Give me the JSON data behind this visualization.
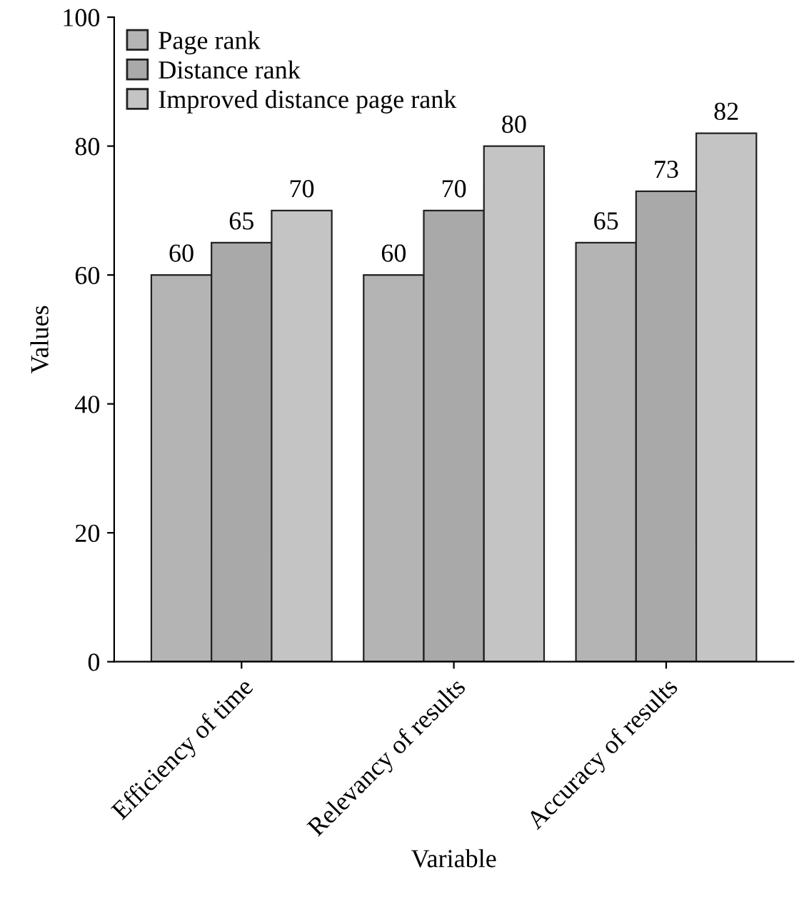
{
  "chart_data": {
    "type": "bar",
    "xlabel": "Variable",
    "ylabel": "Values",
    "categories": [
      "Efficiency of time",
      "Relevancy of results",
      "Accuracy of results"
    ],
    "series": [
      {
        "name": "Page rank",
        "color": "#b4b4b4",
        "values": [
          60,
          60,
          65
        ]
      },
      {
        "name": "Distance rank",
        "color": "#a9a9a9",
        "values": [
          65,
          70,
          73
        ]
      },
      {
        "name": "Improved distance page rank",
        "color": "#c4c4c4",
        "values": [
          70,
          80,
          82
        ]
      }
    ],
    "ylim": [
      0,
      100
    ],
    "yticks": [
      0,
      20,
      40,
      60,
      80,
      100
    ],
    "grid": false,
    "legend": "top left",
    "data_labels": true
  }
}
